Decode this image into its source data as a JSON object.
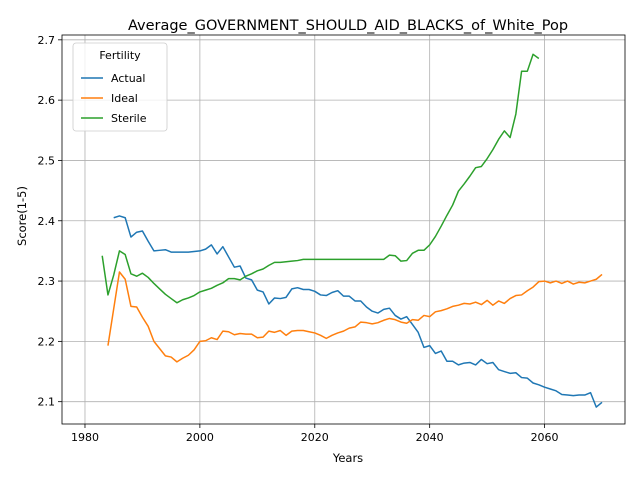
{
  "chart_data": {
    "type": "line",
    "title": "Average_GOVERNMENT_SHOULD_AID_BLACKS_of_White_Pop",
    "xlabel": "Years",
    "ylabel": "Score(1-5)",
    "xlim": [
      1976,
      2074
    ],
    "ylim": [
      2.063,
      2.708
    ],
    "xticks": [
      1980,
      2000,
      2020,
      2040,
      2060
    ],
    "yticks": [
      2.1,
      2.2,
      2.3,
      2.4,
      2.5,
      2.6,
      2.7
    ],
    "grid": true,
    "legend": {
      "title": "Fertility",
      "position": "top-left"
    },
    "series": [
      {
        "name": "Actual",
        "color": "#1f77b4",
        "x": [
          1985,
          1986,
          1987,
          1988,
          1989,
          1990,
          1991,
          1992,
          1993,
          1994,
          1995,
          1996,
          1997,
          1998,
          1999,
          2000,
          2001,
          2002,
          2003,
          2004,
          2005,
          2006,
          2007,
          2008,
          2009,
          2010,
          2011,
          2012,
          2013,
          2014,
          2015,
          2016,
          2017,
          2018,
          2019,
          2020,
          2021,
          2022,
          2023,
          2024,
          2025,
          2026,
          2027,
          2028,
          2029,
          2030,
          2031,
          2032,
          2033,
          2034,
          2035,
          2036,
          2037,
          2038,
          2039,
          2040,
          2041,
          2042,
          2043,
          2044,
          2045,
          2046,
          2047,
          2048,
          2049,
          2050,
          2051,
          2052,
          2053,
          2054,
          2055,
          2056,
          2057,
          2058,
          2059,
          2060,
          2061,
          2062,
          2063,
          2064,
          2065,
          2066,
          2067,
          2068,
          2069,
          2070
        ],
        "values": [
          2.405,
          2.408,
          2.405,
          2.373,
          2.381,
          2.383,
          2.366,
          2.35,
          2.351,
          2.352,
          2.348,
          2.348,
          2.348,
          2.348,
          2.349,
          2.35,
          2.353,
          2.36,
          2.345,
          2.357,
          2.34,
          2.323,
          2.325,
          2.305,
          2.302,
          2.285,
          2.282,
          2.262,
          2.272,
          2.271,
          2.273,
          2.287,
          2.289,
          2.286,
          2.286,
          2.283,
          2.277,
          2.276,
          2.281,
          2.284,
          2.275,
          2.275,
          2.267,
          2.267,
          2.257,
          2.25,
          2.247,
          2.253,
          2.255,
          2.243,
          2.237,
          2.241,
          2.228,
          2.215,
          2.19,
          2.193,
          2.18,
          2.184,
          2.167,
          2.167,
          2.161,
          2.164,
          2.165,
          2.161,
          2.17,
          2.163,
          2.165,
          2.153,
          2.15,
          2.147,
          2.148,
          2.14,
          2.139,
          2.131,
          2.128,
          2.124,
          2.121,
          2.118,
          2.112,
          2.111,
          2.11,
          2.111,
          2.111,
          2.115,
          2.091,
          2.099
        ]
      },
      {
        "name": "Ideal",
        "color": "#ff7f0e",
        "x": [
          1984,
          1985,
          1986,
          1987,
          1988,
          1989,
          1990,
          1991,
          1992,
          1993,
          1994,
          1995,
          1996,
          1997,
          1998,
          1999,
          2000,
          2001,
          2002,
          2003,
          2004,
          2005,
          2006,
          2007,
          2008,
          2009,
          2010,
          2011,
          2012,
          2013,
          2014,
          2015,
          2016,
          2017,
          2018,
          2019,
          2020,
          2021,
          2022,
          2023,
          2024,
          2025,
          2026,
          2027,
          2028,
          2029,
          2030,
          2031,
          2032,
          2033,
          2034,
          2035,
          2036,
          2037,
          2038,
          2039,
          2040,
          2041,
          2042,
          2043,
          2044,
          2045,
          2046,
          2047,
          2048,
          2049,
          2050,
          2051,
          2052,
          2053,
          2054,
          2055,
          2056,
          2057,
          2058,
          2059,
          2060,
          2061,
          2062,
          2063,
          2064,
          2065,
          2066,
          2067,
          2068,
          2069,
          2070
        ],
        "values": [
          2.193,
          2.254,
          2.315,
          2.303,
          2.258,
          2.257,
          2.24,
          2.225,
          2.2,
          2.188,
          2.176,
          2.174,
          2.166,
          2.172,
          2.177,
          2.186,
          2.2,
          2.201,
          2.206,
          2.203,
          2.217,
          2.216,
          2.211,
          2.213,
          2.212,
          2.212,
          2.206,
          2.207,
          2.217,
          2.215,
          2.218,
          2.21,
          2.217,
          2.218,
          2.218,
          2.216,
          2.214,
          2.21,
          2.205,
          2.21,
          2.214,
          2.217,
          2.222,
          2.224,
          2.232,
          2.231,
          2.229,
          2.231,
          2.235,
          2.238,
          2.236,
          2.232,
          2.23,
          2.236,
          2.235,
          2.243,
          2.241,
          2.249,
          2.251,
          2.254,
          2.258,
          2.26,
          2.263,
          2.262,
          2.265,
          2.261,
          2.268,
          2.26,
          2.267,
          2.263,
          2.271,
          2.276,
          2.277,
          2.284,
          2.29,
          2.299,
          2.3,
          2.297,
          2.3,
          2.296,
          2.3,
          2.295,
          2.298,
          2.297,
          2.3,
          2.303,
          2.311
        ]
      },
      {
        "name": "Sterile",
        "color": "#2ca02c",
        "x": [
          1983,
          1984,
          1985,
          1986,
          1987,
          1988,
          1989,
          1990,
          1991,
          1992,
          1993,
          1994,
          1995,
          1996,
          1997,
          1998,
          1999,
          2000,
          2001,
          2002,
          2003,
          2004,
          2005,
          2006,
          2007,
          2008,
          2009,
          2010,
          2011,
          2012,
          2013,
          2014,
          2015,
          2016,
          2017,
          2018,
          2019,
          2020,
          2021,
          2022,
          2023,
          2024,
          2025,
          2026,
          2027,
          2028,
          2029,
          2030,
          2031,
          2032,
          2033,
          2034,
          2035,
          2036,
          2037,
          2038,
          2039,
          2040,
          2041,
          2042,
          2043,
          2044,
          2045,
          2046,
          2047,
          2048,
          2049,
          2050,
          2051,
          2052,
          2053,
          2054,
          2055,
          2056,
          2057,
          2058,
          2059
        ],
        "values": [
          2.342,
          2.277,
          2.31,
          2.35,
          2.344,
          2.312,
          2.308,
          2.313,
          2.306,
          2.296,
          2.287,
          2.278,
          2.271,
          2.264,
          2.269,
          2.272,
          2.276,
          2.282,
          2.285,
          2.288,
          2.293,
          2.297,
          2.304,
          2.304,
          2.302,
          2.308,
          2.312,
          2.317,
          2.32,
          2.326,
          2.331,
          2.331,
          2.332,
          2.333,
          2.334,
          2.336,
          2.336,
          2.336,
          2.336,
          2.336,
          2.336,
          2.336,
          2.336,
          2.336,
          2.336,
          2.336,
          2.336,
          2.336,
          2.336,
          2.336,
          2.343,
          2.342,
          2.333,
          2.334,
          2.346,
          2.351,
          2.351,
          2.36,
          2.374,
          2.391,
          2.409,
          2.426,
          2.449,
          2.461,
          2.474,
          2.488,
          2.49,
          2.503,
          2.518,
          2.535,
          2.549,
          2.538,
          2.577,
          2.648,
          2.648,
          2.676,
          2.669
        ]
      }
    ]
  }
}
